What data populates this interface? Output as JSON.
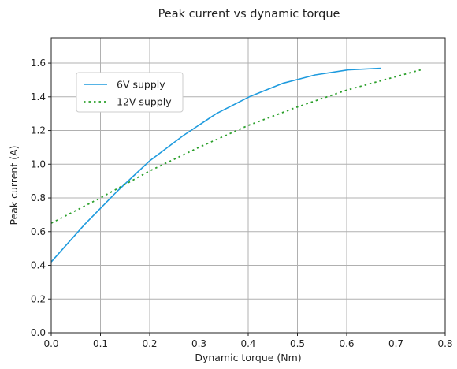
{
  "chart_data": {
    "type": "line",
    "title": "Peak current vs dynamic torque",
    "xlabel": "Dynamic torque (Nm)",
    "ylabel": "Peak current (A)",
    "xlim": [
      0,
      0.8
    ],
    "ylim": [
      0,
      1.75
    ],
    "xticks": [
      "0.0",
      "0.1",
      "0.2",
      "0.3",
      "0.4",
      "0.5",
      "0.6",
      "0.7",
      "0.8"
    ],
    "yticks": [
      "0.0",
      "0.2",
      "0.4",
      "0.6",
      "0.8",
      "1.0",
      "1.2",
      "1.4",
      "1.6"
    ],
    "grid": true,
    "legend_position": "upper-left",
    "series": [
      {
        "name": "6V supply",
        "style": "solid",
        "color": "#1f9bde",
        "x": [
          0.0,
          0.067,
          0.134,
          0.2,
          0.268,
          0.335,
          0.402,
          0.47,
          0.536,
          0.603,
          0.67
        ],
        "y": [
          0.42,
          0.64,
          0.84,
          1.02,
          1.17,
          1.3,
          1.4,
          1.48,
          1.53,
          1.56,
          1.57
        ]
      },
      {
        "name": "12V supply",
        "style": "dotted",
        "color": "#2ca02c",
        "x": [
          0.0,
          0.1,
          0.2,
          0.3,
          0.4,
          0.5,
          0.6,
          0.7,
          0.75
        ],
        "y": [
          0.65,
          0.8,
          0.96,
          1.1,
          1.23,
          1.34,
          1.44,
          1.52,
          1.56
        ]
      }
    ]
  }
}
